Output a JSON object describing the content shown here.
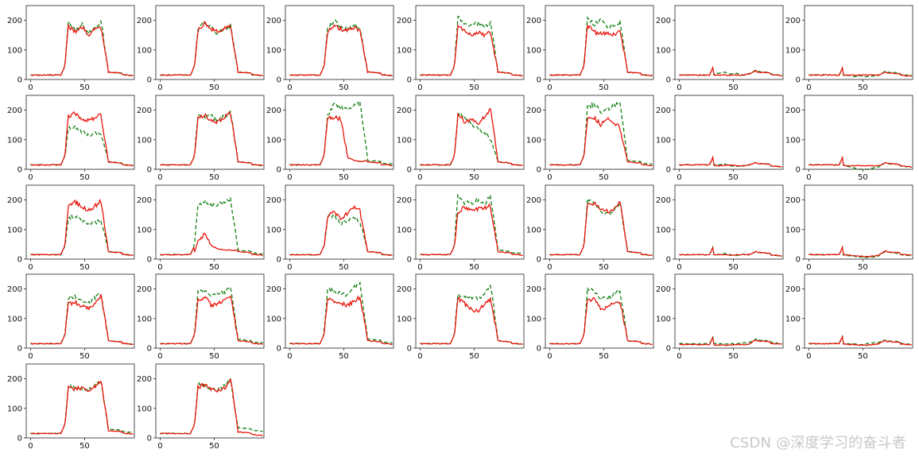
{
  "watermark": "CSDN @深度学习的奋斗者",
  "colors": {
    "red": "#e8150b",
    "green": "#128012",
    "axis": "#222222"
  },
  "chart_data": {
    "type": "line",
    "layout": "grid of small-multiple line plots, 5 rows x 7 columns, 30 panels",
    "xlim": [
      -4,
      96
    ],
    "ylim": [
      0,
      250
    ],
    "xticks": [
      0,
      50
    ],
    "yticks": [
      0,
      100,
      200
    ],
    "series_styles": [
      {
        "name": "red",
        "color": "#e8150b",
        "style": "solid"
      },
      {
        "name": "green",
        "color": "#128012",
        "style": "dashed"
      }
    ],
    "panels": [
      {
        "row": 0,
        "col": 0,
        "red": {
          "base": 15,
          "plateau": [
            180,
            160,
            180,
            150,
            170,
            175
          ],
          "tail": 20
        },
        "green": {
          "base": 15,
          "plateau": [
            195,
            165,
            190,
            160,
            175,
            200
          ],
          "tail": 20
        }
      },
      {
        "row": 0,
        "col": 1,
        "red": {
          "base": 15,
          "plateau": [
            165,
            190,
            170,
            160,
            175,
            180
          ],
          "tail": 20
        },
        "green": {
          "base": 15,
          "plateau": [
            170,
            195,
            175,
            155,
            170,
            185
          ],
          "tail": 20
        }
      },
      {
        "row": 0,
        "col": 2,
        "red": {
          "base": 15,
          "plateau": [
            160,
            180,
            170,
            165,
            175,
            160
          ],
          "tail": 20
        },
        "green": {
          "base": 15,
          "plateau": [
            175,
            200,
            175,
            170,
            185,
            170
          ],
          "tail": 20
        }
      },
      {
        "row": 0,
        "col": 3,
        "red": {
          "base": 15,
          "plateau": [
            185,
            165,
            150,
            160,
            150,
            160
          ],
          "tail": 20
        },
        "green": {
          "base": 15,
          "plateau": [
            210,
            190,
            185,
            190,
            180,
            195
          ],
          "tail": 20
        }
      },
      {
        "row": 0,
        "col": 4,
        "red": {
          "base": 15,
          "plateau": [
            185,
            160,
            155,
            160,
            150,
            165
          ],
          "tail": 20
        },
        "green": {
          "base": 15,
          "plateau": [
            205,
            185,
            200,
            180,
            185,
            195
          ],
          "tail": 20
        }
      },
      {
        "row": 0,
        "col": 5,
        "red": {
          "base": 15,
          "plateau": [
            15,
            15,
            15,
            15,
            15,
            20
          ],
          "tail": 20
        },
        "green": {
          "base": 15,
          "plateau": [
            20,
            25,
            18,
            20,
            15,
            22
          ],
          "tail": 22
        }
      },
      {
        "row": 0,
        "col": 6,
        "red": {
          "base": 15,
          "plateau": [
            15,
            15,
            15,
            15,
            15,
            15
          ],
          "tail": 18
        },
        "green": {
          "base": 15,
          "plateau": [
            15,
            10,
            12,
            8,
            12,
            15
          ],
          "tail": 20
        }
      },
      {
        "row": 1,
        "col": 0,
        "red": {
          "base": 15,
          "plateau": [
            180,
            190,
            170,
            165,
            175,
            185
          ],
          "tail": 20
        },
        "green": {
          "base": 15,
          "plateau": [
            140,
            140,
            125,
            115,
            120,
            125
          ],
          "tail": 20
        }
      },
      {
        "row": 1,
        "col": 1,
        "red": {
          "base": 15,
          "plateau": [
            170,
            185,
            165,
            160,
            175,
            195
          ],
          "tail": 20
        },
        "green": {
          "base": 15,
          "plateau": [
            185,
            175,
            180,
            165,
            180,
            200
          ],
          "tail": 20
        }
      },
      {
        "row": 1,
        "col": 2,
        "red": {
          "base": 15,
          "plateau": [
            175,
            175,
            170,
            40,
            30,
            25
          ],
          "tail": 20
        },
        "green": {
          "base": 15,
          "plateau": [
            185,
            220,
            210,
            200,
            215,
            225
          ],
          "tail": 25
        }
      },
      {
        "row": 1,
        "col": 3,
        "red": {
          "base": 15,
          "plateau": [
            190,
            160,
            170,
            150,
            180,
            205
          ],
          "tail": 20
        },
        "green": {
          "base": 15,
          "plateau": [
            185,
            175,
            150,
            140,
            120,
            100
          ],
          "tail": 20
        }
      },
      {
        "row": 1,
        "col": 4,
        "red": {
          "base": 15,
          "plateau": [
            170,
            175,
            150,
            170,
            160,
            135
          ],
          "tail": 20
        },
        "green": {
          "base": 15,
          "plateau": [
            210,
            220,
            195,
            205,
            215,
            225
          ],
          "tail": 25
        }
      },
      {
        "row": 1,
        "col": 5,
        "red": {
          "base": 15,
          "plateau": [
            12,
            12,
            15,
            12,
            12,
            15
          ],
          "tail": 15
        },
        "green": {
          "base": 15,
          "plateau": [
            15,
            18,
            12,
            10,
            12,
            15
          ],
          "tail": 15
        }
      },
      {
        "row": 1,
        "col": 6,
        "red": {
          "base": 15,
          "plateau": [
            12,
            12,
            12,
            12,
            12,
            12
          ],
          "tail": 15
        },
        "green": {
          "base": 15,
          "plateau": [
            10,
            5,
            0,
            0,
            5,
            10
          ],
          "tail": 15
        }
      },
      {
        "row": 2,
        "col": 0,
        "red": {
          "base": 15,
          "plateau": [
            175,
            195,
            175,
            165,
            180,
            200
          ],
          "tail": 20
        },
        "green": {
          "base": 15,
          "plateau": [
            140,
            145,
            130,
            120,
            125,
            130
          ],
          "tail": 20
        }
      },
      {
        "row": 2,
        "col": 1,
        "red": {
          "base": 15,
          "plateau": [
            60,
            85,
            45,
            35,
            30,
            30
          ],
          "tail": 20
        },
        "green": {
          "base": 15,
          "plateau": [
            185,
            195,
            180,
            185,
            190,
            205
          ],
          "tail": 25
        }
      },
      {
        "row": 2,
        "col": 2,
        "red": {
          "base": 15,
          "plateau": [
            145,
            160,
            135,
            155,
            175,
            160
          ],
          "tail": 20
        },
        "green": {
          "base": 15,
          "plateau": [
            140,
            150,
            120,
            135,
            140,
            125
          ],
          "tail": 20
        }
      },
      {
        "row": 2,
        "col": 3,
        "red": {
          "base": 15,
          "plateau": [
            160,
            175,
            165,
            170,
            175,
            180
          ],
          "tail": 20
        },
        "green": {
          "base": 15,
          "plateau": [
            215,
            190,
            190,
            200,
            185,
            220
          ],
          "tail": 25
        }
      },
      {
        "row": 2,
        "col": 4,
        "red": {
          "base": 15,
          "plateau": [
            185,
            190,
            170,
            160,
            170,
            195
          ],
          "tail": 20
        },
        "green": {
          "base": 15,
          "plateau": [
            200,
            190,
            165,
            150,
            170,
            190
          ],
          "tail": 20
        }
      },
      {
        "row": 2,
        "col": 5,
        "red": {
          "base": 15,
          "plateau": [
            15,
            15,
            12,
            15,
            15,
            15
          ],
          "tail": 18
        },
        "green": {
          "base": 15,
          "plateau": [
            15,
            18,
            15,
            12,
            18,
            15
          ],
          "tail": 18
        }
      },
      {
        "row": 2,
        "col": 6,
        "red": {
          "base": 15,
          "plateau": [
            15,
            12,
            10,
            8,
            10,
            15
          ],
          "tail": 20
        },
        "green": {
          "base": 15,
          "plateau": [
            12,
            10,
            8,
            5,
            8,
            12
          ],
          "tail": 18
        }
      },
      {
        "row": 3,
        "col": 0,
        "red": {
          "base": 15,
          "plateau": [
            150,
            155,
            140,
            135,
            150,
            185
          ],
          "tail": 20
        },
        "green": {
          "base": 15,
          "plateau": [
            170,
            175,
            160,
            150,
            170,
            190
          ],
          "tail": 20
        }
      },
      {
        "row": 3,
        "col": 1,
        "red": {
          "base": 15,
          "plateau": [
            160,
            175,
            145,
            150,
            165,
            185
          ],
          "tail": 20
        },
        "green": {
          "base": 15,
          "plateau": [
            195,
            190,
            180,
            185,
            190,
            210
          ],
          "tail": 25
        }
      },
      {
        "row": 3,
        "col": 2,
        "red": {
          "base": 15,
          "plateau": [
            170,
            160,
            150,
            145,
            160,
            175
          ],
          "tail": 20
        },
        "green": {
          "base": 15,
          "plateau": [
            200,
            190,
            185,
            180,
            205,
            220
          ],
          "tail": 25
        }
      },
      {
        "row": 3,
        "col": 3,
        "red": {
          "base": 15,
          "plateau": [
            170,
            150,
            130,
            125,
            150,
            170
          ],
          "tail": 20
        },
        "green": {
          "base": 15,
          "plateau": [
            180,
            175,
            170,
            165,
            180,
            225
          ],
          "tail": 20
        }
      },
      {
        "row": 3,
        "col": 4,
        "red": {
          "base": 15,
          "plateau": [
            165,
            165,
            130,
            140,
            155,
            160
          ],
          "tail": 20
        },
        "green": {
          "base": 15,
          "plateau": [
            200,
            195,
            165,
            170,
            185,
            195
          ],
          "tail": 20
        }
      },
      {
        "row": 3,
        "col": 5,
        "red": {
          "base": 12,
          "plateau": [
            10,
            10,
            10,
            12,
            12,
            15
          ],
          "tail": 20
        },
        "green": {
          "base": 15,
          "plateau": [
            15,
            15,
            15,
            15,
            18,
            20
          ],
          "tail": 22
        }
      },
      {
        "row": 3,
        "col": 6,
        "red": {
          "base": 15,
          "plateau": [
            12,
            12,
            10,
            10,
            12,
            15
          ],
          "tail": 18
        },
        "green": {
          "base": 15,
          "plateau": [
            15,
            15,
            12,
            15,
            18,
            20
          ],
          "tail": 20
        }
      },
      {
        "row": 4,
        "col": 0,
        "red": {
          "base": 15,
          "plateau": [
            170,
            165,
            170,
            160,
            175,
            200
          ],
          "tail": 20
        },
        "green": {
          "base": 15,
          "plateau": [
            175,
            170,
            165,
            165,
            180,
            195
          ],
          "tail": 25
        }
      },
      {
        "row": 4,
        "col": 1,
        "red": {
          "base": 15,
          "plateau": [
            170,
            180,
            165,
            160,
            170,
            205
          ],
          "tail": 15
        },
        "green": {
          "base": 15,
          "plateau": [
            180,
            175,
            170,
            165,
            175,
            200
          ],
          "tail": 30
        }
      }
    ]
  }
}
